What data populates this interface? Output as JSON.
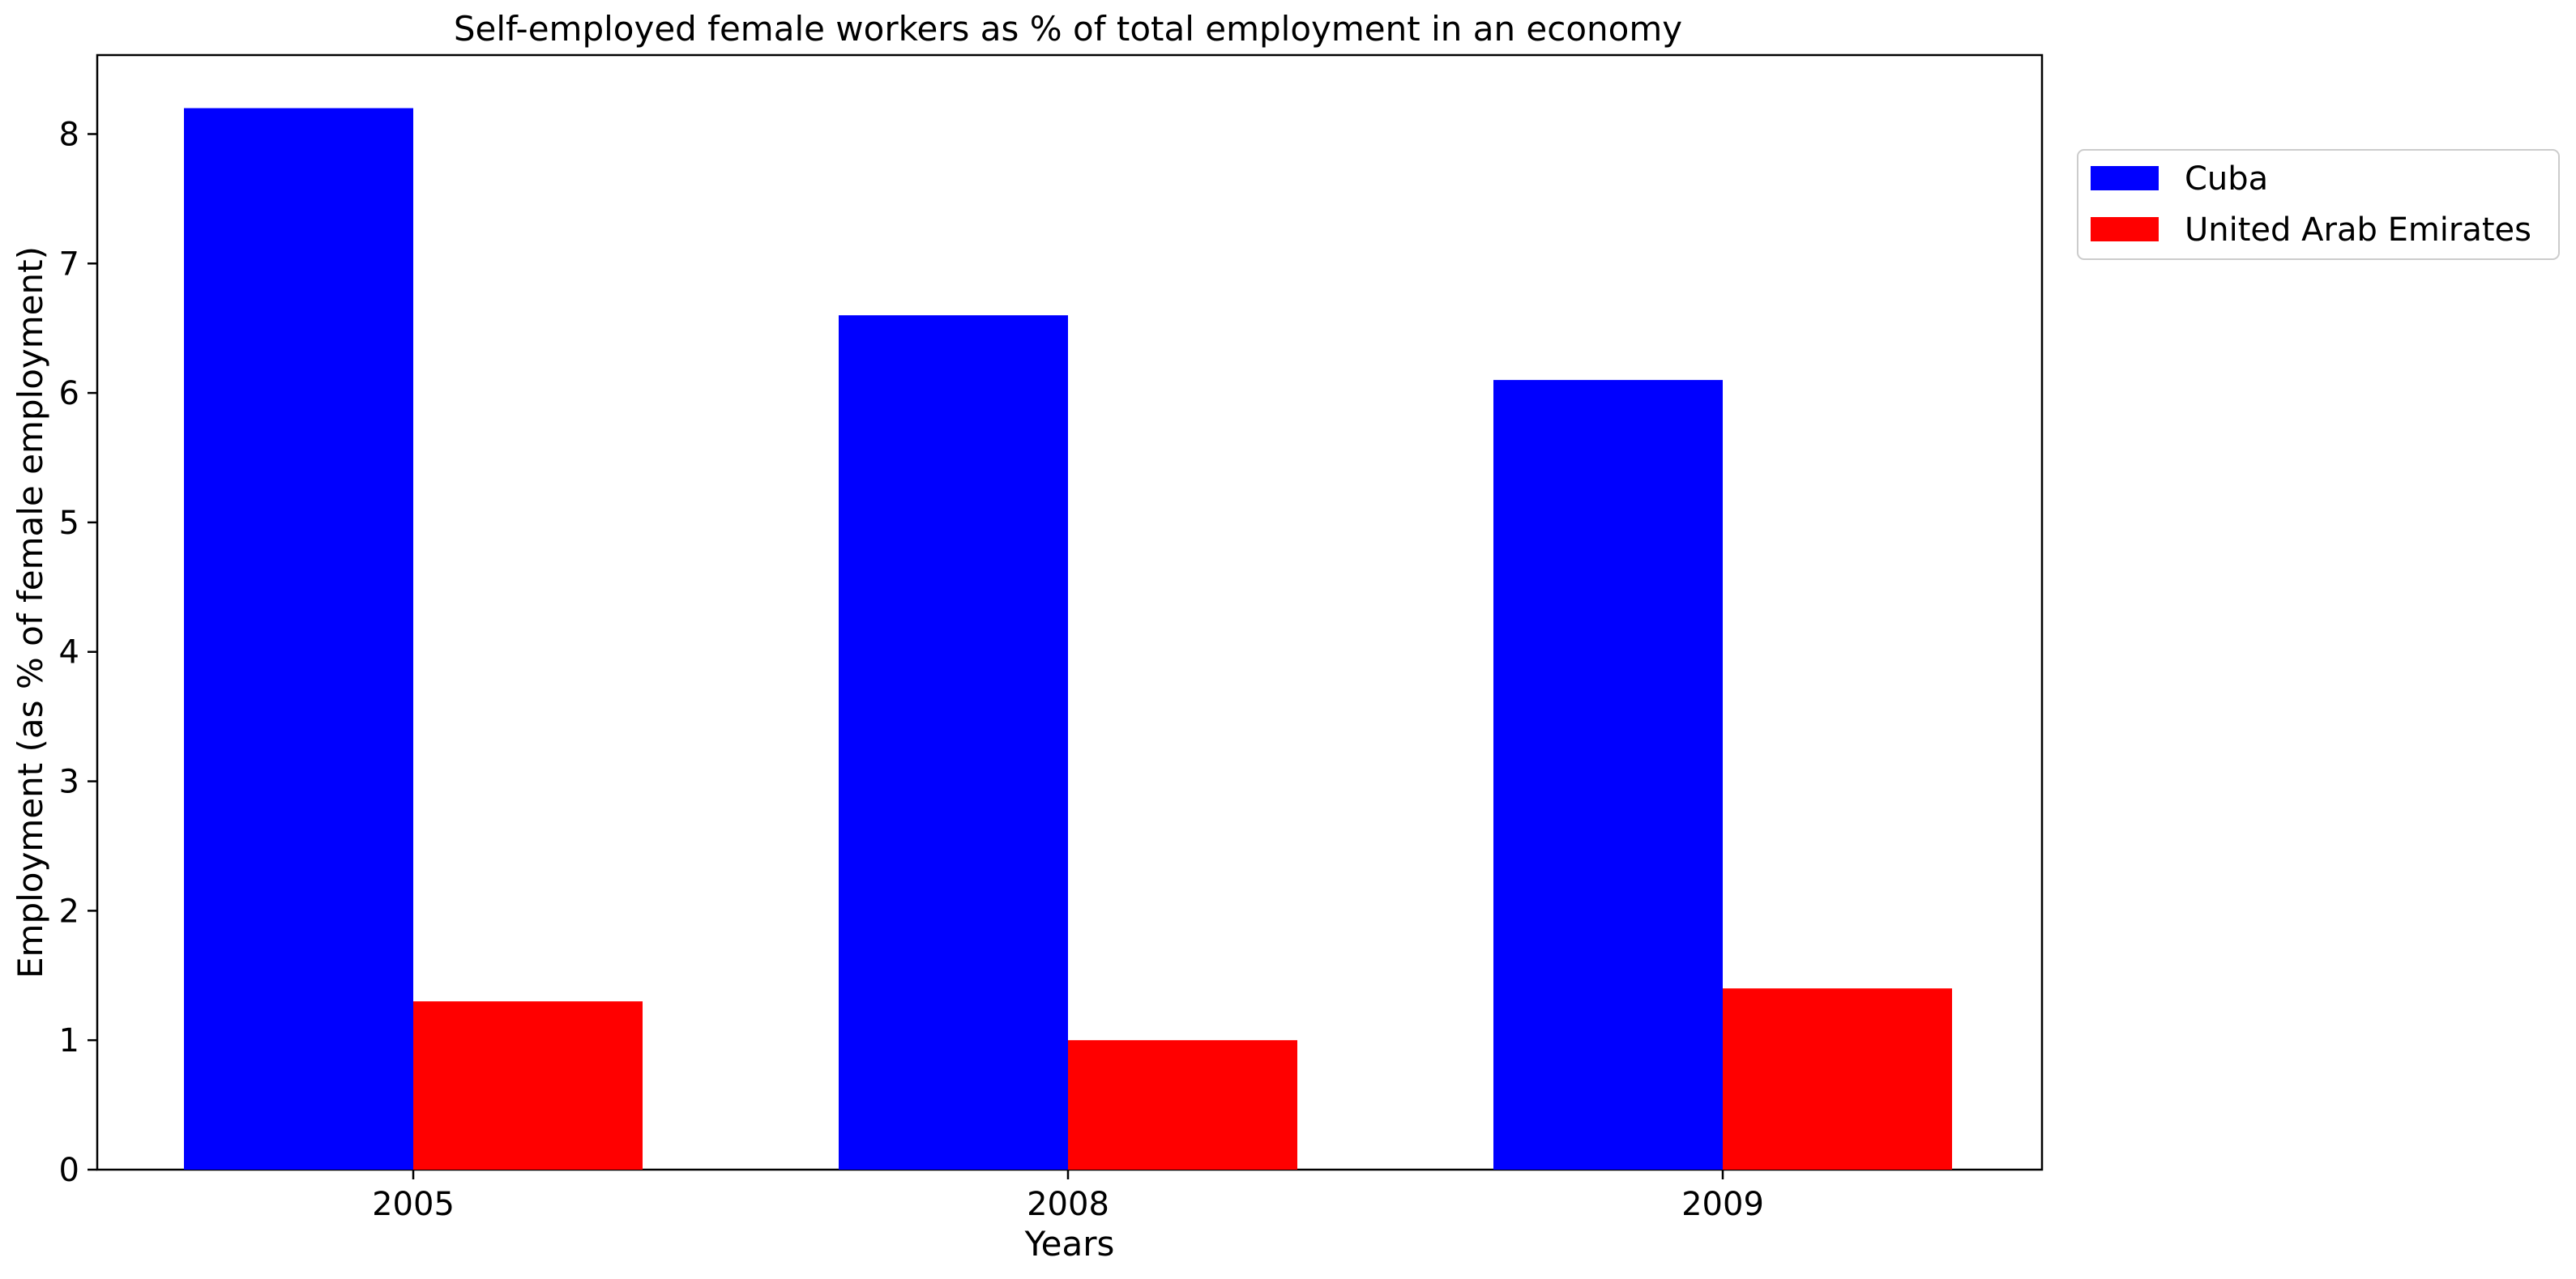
{
  "chart_data": {
    "type": "bar",
    "title": "Self-employed female workers as % of total employment in an economy",
    "xlabel": "Years",
    "ylabel": "Employment (as % of female employment)",
    "categories": [
      "2005",
      "2008",
      "2009"
    ],
    "series": [
      {
        "name": "Cuba",
        "values": [
          8.2,
          6.6,
          6.1
        ],
        "color": "#0000ff"
      },
      {
        "name": "United Arab Emirates",
        "values": [
          1.3,
          1.0,
          1.4
        ],
        "color": "#ff0000"
      }
    ],
    "yticks": [
      "0",
      "1",
      "2",
      "3",
      "4",
      "5",
      "6",
      "7",
      "8"
    ],
    "ylim": [
      0,
      8.61
    ],
    "grid": false,
    "legend_position": "outside-top-right"
  }
}
